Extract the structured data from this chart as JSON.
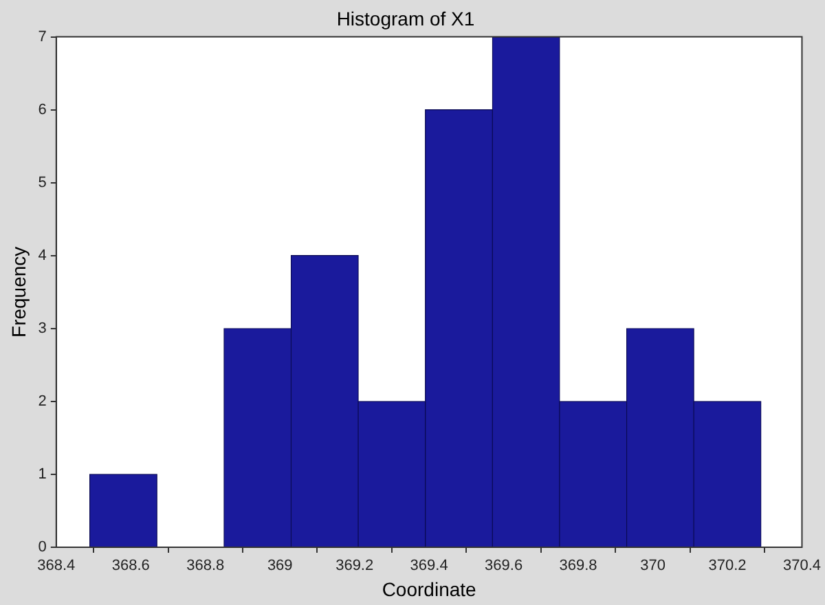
{
  "chart_data": {
    "type": "histogram",
    "title": "Histogram of X1",
    "xlabel": "Coordinate",
    "ylabel": "Frequency",
    "bins": [
      368.49,
      368.67,
      368.85,
      369.03,
      369.21,
      369.39,
      369.57,
      369.75,
      369.93,
      370.11,
      370.29
    ],
    "values": [
      1,
      0,
      3,
      4,
      2,
      6,
      7,
      2,
      3,
      2
    ],
    "color": "#1a1a9c",
    "xlim": [
      368.4,
      370.4
    ],
    "xticks": [
      368.4,
      368.6,
      368.8,
      369,
      369.2,
      369.4,
      369.6,
      369.8,
      370,
      370.2,
      370.4
    ],
    "ylim": [
      0,
      7
    ],
    "yticks": [
      0,
      1,
      2,
      3,
      4,
      5,
      6,
      7
    ],
    "grid": false,
    "legend": false
  }
}
